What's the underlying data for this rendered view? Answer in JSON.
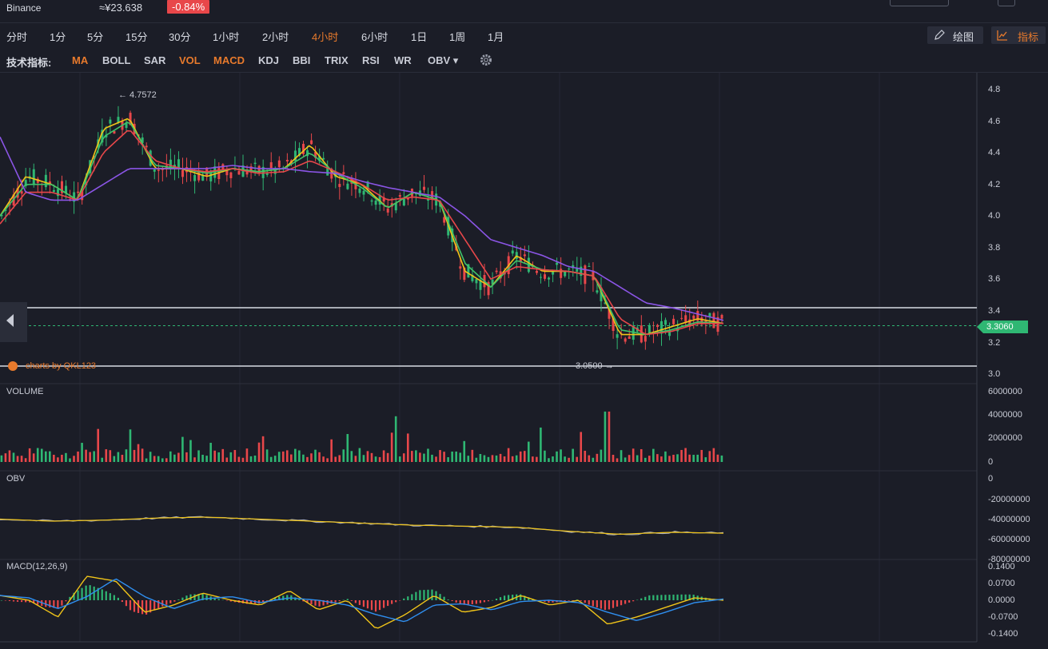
{
  "header": {
    "exchange": "Binance",
    "price_cny": "≈¥23.638",
    "change": "-0.84%"
  },
  "periods": [
    {
      "label": "分时",
      "active": false
    },
    {
      "label": "1分",
      "active": false
    },
    {
      "label": "5分",
      "active": false
    },
    {
      "label": "15分",
      "active": false
    },
    {
      "label": "30分",
      "active": false
    },
    {
      "label": "1小时",
      "active": false
    },
    {
      "label": "2小时",
      "active": false
    },
    {
      "label": "4小时",
      "active": true
    },
    {
      "label": "6小时",
      "active": false
    },
    {
      "label": "1日",
      "active": false
    },
    {
      "label": "1周",
      "active": false
    },
    {
      "label": "1月",
      "active": false
    }
  ],
  "toolbar": {
    "draw_label": "绘图",
    "indicator_label": "指标"
  },
  "indicators": {
    "label": "技术指标:",
    "items": [
      {
        "label": "MA",
        "active": true
      },
      {
        "label": "BOLL",
        "active": false
      },
      {
        "label": "SAR",
        "active": false
      },
      {
        "label": "VOL",
        "active": true
      },
      {
        "label": "MACD",
        "active": true
      },
      {
        "label": "KDJ",
        "active": false
      },
      {
        "label": "BBI",
        "active": false
      },
      {
        "label": "TRIX",
        "active": false
      },
      {
        "label": "RSI",
        "active": false
      },
      {
        "label": "WR",
        "active": false
      },
      {
        "label": "OBV ▾",
        "active": false
      }
    ]
  },
  "watermark": "charts by QKL123",
  "colors": {
    "up": "#2fb773",
    "down": "#e8474a",
    "accent": "#e87a2c",
    "ma_yellow": "#f0c419",
    "ma_green": "#3fc46a",
    "ma_red": "#e8474a",
    "ma_purple": "#8b55e6",
    "macd_blue": "#2f8ff0"
  },
  "chart_data": [
    {
      "type": "line",
      "panel": "price",
      "title": "",
      "ylim": [
        3.0,
        4.85
      ],
      "yticks": [
        "4.8",
        "4.6",
        "4.4",
        "4.2",
        "4.0",
        "3.8",
        "3.6",
        "3.4",
        "3.2",
        "3.0"
      ],
      "high_label": "← 4.7572",
      "low_label": "3.0500 →",
      "current_price": "3.3060",
      "series": [
        {
          "color": "yellow",
          "values": [
            4.0,
            4.25,
            4.2,
            4.1,
            4.55,
            4.62,
            4.3,
            4.3,
            4.25,
            4.3,
            4.28,
            4.3,
            4.45,
            4.25,
            4.2,
            4.05,
            4.15,
            4.1,
            3.65,
            3.55,
            3.75,
            3.65,
            3.65,
            3.62,
            3.25,
            3.25,
            3.3,
            3.35,
            3.32
          ]
        },
        {
          "color": "green",
          "values": [
            4.0,
            4.2,
            4.2,
            4.1,
            4.5,
            4.6,
            4.32,
            4.3,
            4.27,
            4.3,
            4.28,
            4.3,
            4.4,
            4.27,
            4.18,
            4.05,
            4.15,
            4.1,
            3.7,
            3.55,
            3.72,
            3.66,
            3.65,
            3.62,
            3.28,
            3.25,
            3.28,
            3.33,
            3.32
          ]
        },
        {
          "color": "red",
          "values": [
            3.95,
            4.15,
            4.15,
            4.1,
            4.4,
            4.55,
            4.35,
            4.3,
            4.28,
            4.3,
            4.27,
            4.28,
            4.35,
            4.28,
            4.2,
            4.1,
            4.12,
            4.1,
            3.85,
            3.6,
            3.68,
            3.66,
            3.65,
            3.62,
            3.35,
            3.25,
            3.27,
            3.32,
            3.32
          ]
        },
        {
          "color": "purple",
          "values": [
            4.5,
            4.15,
            4.1,
            4.1,
            4.2,
            4.3,
            4.3,
            4.3,
            4.3,
            4.32,
            4.3,
            4.3,
            4.28,
            4.27,
            4.22,
            4.18,
            4.15,
            4.12,
            4.0,
            3.85,
            3.8,
            3.75,
            3.68,
            3.65,
            3.55,
            3.45,
            3.42,
            3.38,
            3.34
          ]
        }
      ]
    },
    {
      "type": "bar",
      "panel": "VOLUME",
      "title": "VOLUME",
      "yticks": [
        "6000000",
        "4000000",
        "2000000",
        "0"
      ],
      "ylim": [
        0,
        6000000
      ]
    },
    {
      "type": "line",
      "panel": "OBV",
      "title": "OBV",
      "yticks": [
        "0",
        "-20000000",
        "-40000000",
        "-60000000",
        "-80000000"
      ],
      "ylim": [
        -80000000,
        0
      ]
    },
    {
      "type": "bar",
      "panel": "MACD",
      "title": "MACD(12,26,9)",
      "yticks": [
        "0.1400",
        "0.0700",
        "0.0000",
        "-0.0700",
        "-0.1400"
      ],
      "ylim": [
        -0.14,
        0.14
      ]
    }
  ]
}
